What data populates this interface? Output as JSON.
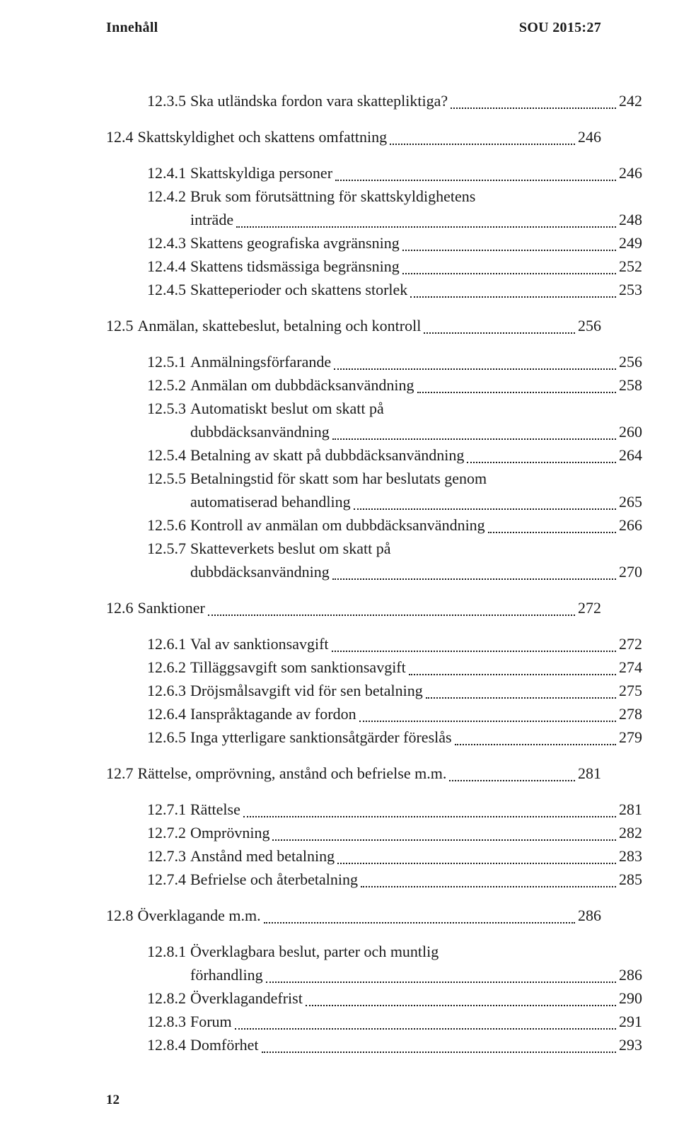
{
  "header": {
    "left": "Innehåll",
    "right": "SOU 2015:27"
  },
  "page_number": "12",
  "colors": {
    "text": "#1a1a1a",
    "background": "#ffffff",
    "dots": "#1a1a1a"
  },
  "typography": {
    "body_font": "Times New Roman / Garamond serif",
    "body_size_pt": 11,
    "header_weight": 700
  },
  "toc": [
    {
      "indent": 1,
      "entries": [
        {
          "num": "12.3.5",
          "label": "Ska utländska fordon vara skattepliktiga?",
          "page": "242"
        }
      ]
    },
    {
      "indent": 0,
      "entries": [
        {
          "num": "12.4",
          "label": "Skattskyldighet och skattens omfattning",
          "page": "246"
        }
      ]
    },
    {
      "indent": 1,
      "entries": [
        {
          "num": "12.4.1",
          "label": "Skattskyldiga personer",
          "page": "246"
        },
        {
          "num": "12.4.2",
          "label": "Bruk som förutsättning för skattskyldighetens",
          "cont": "inträde",
          "page": "248"
        },
        {
          "num": "12.4.3",
          "label": "Skattens geografiska avgränsning",
          "page": "249"
        },
        {
          "num": "12.4.4",
          "label": "Skattens tidsmässiga begränsning",
          "page": "252"
        },
        {
          "num": "12.4.5",
          "label": "Skatteperioder och skattens storlek",
          "page": "253"
        }
      ]
    },
    {
      "indent": 0,
      "entries": [
        {
          "num": "12.5",
          "label": "Anmälan, skattebeslut, betalning och kontroll",
          "page": "256"
        }
      ]
    },
    {
      "indent": 1,
      "entries": [
        {
          "num": "12.5.1",
          "label": "Anmälningsförfarande",
          "page": "256"
        },
        {
          "num": "12.5.2",
          "label": "Anmälan om dubbdäcksanvändning",
          "page": "258"
        },
        {
          "num": "12.5.3",
          "label": "Automatiskt beslut om skatt på",
          "cont": "dubbdäcksanvändning",
          "page": "260"
        },
        {
          "num": "12.5.4",
          "label": "Betalning av skatt på dubbdäcksanvändning",
          "page": "264"
        },
        {
          "num": "12.5.5",
          "label": "Betalningstid för skatt som har beslutats genom",
          "cont": "automatiserad behandling",
          "page": "265"
        },
        {
          "num": "12.5.6",
          "label": "Kontroll av anmälan om dubbdäcksanvändning",
          "page": "266"
        },
        {
          "num": "12.5.7",
          "label": "Skatteverkets beslut om skatt  på",
          "cont": "dubbdäcksanvändning",
          "page": "270"
        }
      ]
    },
    {
      "indent": 0,
      "entries": [
        {
          "num": "12.6",
          "label": "Sanktioner",
          "page": "272"
        }
      ]
    },
    {
      "indent": 1,
      "entries": [
        {
          "num": "12.6.1",
          "label": "Val av sanktionsavgift",
          "page": "272"
        },
        {
          "num": "12.6.2",
          "label": "Tilläggsavgift som sanktionsavgift",
          "page": "274"
        },
        {
          "num": "12.6.3",
          "label": "Dröjsmålsavgift vid för sen betalning",
          "page": "275"
        },
        {
          "num": "12.6.4",
          "label": "Ianspråktagande av fordon",
          "page": "278"
        },
        {
          "num": "12.6.5",
          "label": "Inga ytterligare sanktionsåtgärder föreslås",
          "page": "279"
        }
      ]
    },
    {
      "indent": 0,
      "entries": [
        {
          "num": "12.7",
          "label": "Rättelse, omprövning, anstånd och befrielse m.m.",
          "page": "281"
        }
      ]
    },
    {
      "indent": 1,
      "entries": [
        {
          "num": "12.7.1",
          "label": "Rättelse",
          "page": "281"
        },
        {
          "num": "12.7.2",
          "label": "Omprövning",
          "page": "282"
        },
        {
          "num": "12.7.3",
          "label": "Anstånd med betalning",
          "page": "283"
        },
        {
          "num": "12.7.4",
          "label": "Befrielse och återbetalning",
          "page": "285"
        }
      ]
    },
    {
      "indent": 0,
      "entries": [
        {
          "num": "12.8",
          "label": "Överklagande m.m. ",
          "page": "286"
        }
      ]
    },
    {
      "indent": 1,
      "entries": [
        {
          "num": "12.8.1",
          "label": "Överklagbara beslut, parter och muntlig",
          "cont": "förhandling",
          "page": "286"
        },
        {
          "num": "12.8.2",
          "label": "Överklagandefrist",
          "page": "290"
        },
        {
          "num": "12.8.3",
          "label": "Forum",
          "page": "291"
        },
        {
          "num": "12.8.4",
          "label": "Domförhet",
          "page": "293"
        }
      ]
    }
  ]
}
